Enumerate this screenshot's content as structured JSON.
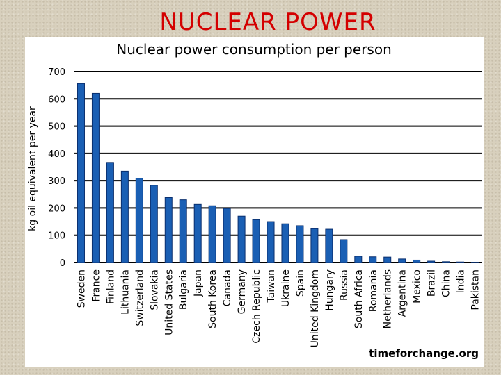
{
  "slide": {
    "title": "NUCLEAR POWER"
  },
  "source_note": "timeforchange.org",
  "colors": {
    "title": "#d40000",
    "bar": "#1a5fb4",
    "bar_edge": "#0a2f6e",
    "grid": "#000000"
  },
  "chart_data": {
    "type": "bar",
    "title": "Nuclear power consumption per person",
    "xlabel": "",
    "ylabel": "kg oil equivalent per year",
    "ylim": [
      0,
      700
    ],
    "yticks": [
      0,
      100,
      200,
      300,
      400,
      500,
      600,
      700
    ],
    "grid": true,
    "categories": [
      "Sweden",
      "France",
      "Finland",
      "Lithuania",
      "Switzerland",
      "Slovakia",
      "United States",
      "Bulgaria",
      "Japan",
      "South Korea",
      "Canada",
      "Germany",
      "Czech Republic",
      "Taiwan",
      "Ukraine",
      "Spain",
      "United Kingdom",
      "Hungary",
      "Russia",
      "South Africa",
      "Romania",
      "Netherlands",
      "Argentina",
      "Mexico",
      "Brazil",
      "China",
      "India",
      "Pakistan"
    ],
    "values": [
      656,
      620,
      367,
      335,
      309,
      283,
      238,
      230,
      213,
      208,
      198,
      170,
      157,
      150,
      142,
      135,
      124,
      122,
      84,
      23,
      21,
      20,
      13,
      9,
      5,
      3,
      2,
      1
    ]
  }
}
